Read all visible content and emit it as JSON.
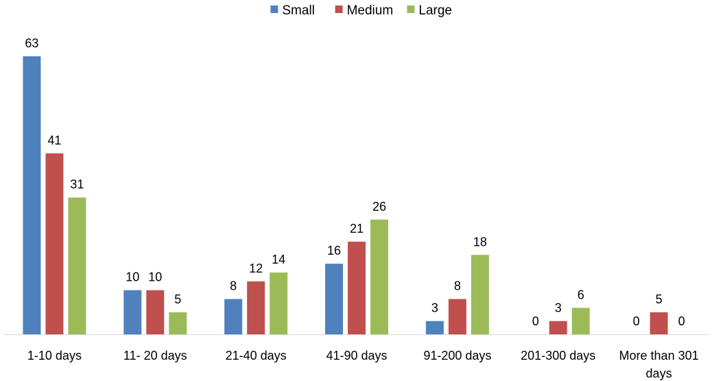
{
  "chart_data": {
    "type": "bar",
    "categories": [
      "1-10 days",
      "11- 20 days",
      "21-40 days",
      "41-90 days",
      "91-200 days",
      "201-300 days",
      "More than 301 days"
    ],
    "category_lines": [
      [
        "1-10 days"
      ],
      [
        "11- 20 days"
      ],
      [
        "21-40 days"
      ],
      [
        "41-90 days"
      ],
      [
        "91-200 days"
      ],
      [
        "201-300 days"
      ],
      [
        "More than 301",
        "days"
      ]
    ],
    "series": [
      {
        "name": "Small",
        "color": "#4F81BD",
        "values": [
          63,
          10,
          8,
          16,
          3,
          0,
          0
        ]
      },
      {
        "name": "Medium",
        "color": "#C0504D",
        "values": [
          41,
          10,
          12,
          21,
          8,
          3,
          5
        ]
      },
      {
        "name": "Large",
        "color": "#9BBB59",
        "values": [
          31,
          5,
          14,
          26,
          18,
          6,
          0
        ]
      }
    ],
    "ylim": [
      0,
      63
    ],
    "grid": false,
    "legend_position": "top-center",
    "data_labels": true,
    "title": "",
    "xlabel": "",
    "ylabel": ""
  }
}
